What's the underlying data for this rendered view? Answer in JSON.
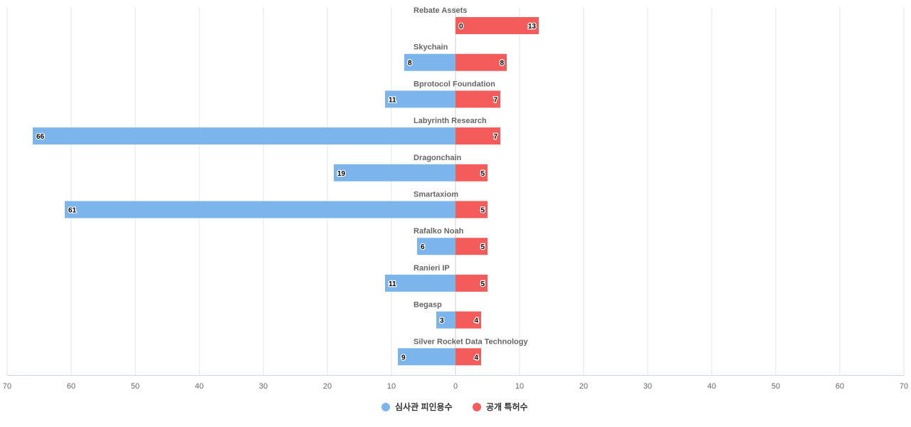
{
  "chart_data": {
    "type": "bar",
    "orientation": "horizontal-diverging",
    "title": "",
    "xlabel": "",
    "ylabel": "",
    "xlim": [
      -70,
      70
    ],
    "x_ticks": [
      -70,
      -60,
      -50,
      -40,
      -30,
      -20,
      -10,
      0,
      10,
      20,
      30,
      40,
      50,
      60,
      70
    ],
    "x_tick_labels": [
      "70",
      "60",
      "50",
      "40",
      "30",
      "20",
      "10",
      "0",
      "10",
      "20",
      "30",
      "40",
      "50",
      "60",
      "70"
    ],
    "grid": true,
    "legend_position": "bottom",
    "categories": [
      "Rebate Assets",
      "Skychain",
      "Bprotocol Foundation",
      "Labyrinth Research",
      "Dragonchain",
      "Smartaxiom",
      "Rafalko Noah",
      "Ranieri IP",
      "Begasp",
      "Silver Rocket Data Technology"
    ],
    "series": [
      {
        "name": "심사관 피인용수",
        "side": "left",
        "color": "#7cb5ec",
        "values": [
          0,
          8,
          11,
          66,
          19,
          61,
          6,
          11,
          3,
          9
        ]
      },
      {
        "name": "공개 특허수",
        "side": "right",
        "color": "#f45b5b",
        "values": [
          13,
          8,
          7,
          7,
          5,
          5,
          5,
          5,
          4,
          4
        ]
      }
    ]
  }
}
